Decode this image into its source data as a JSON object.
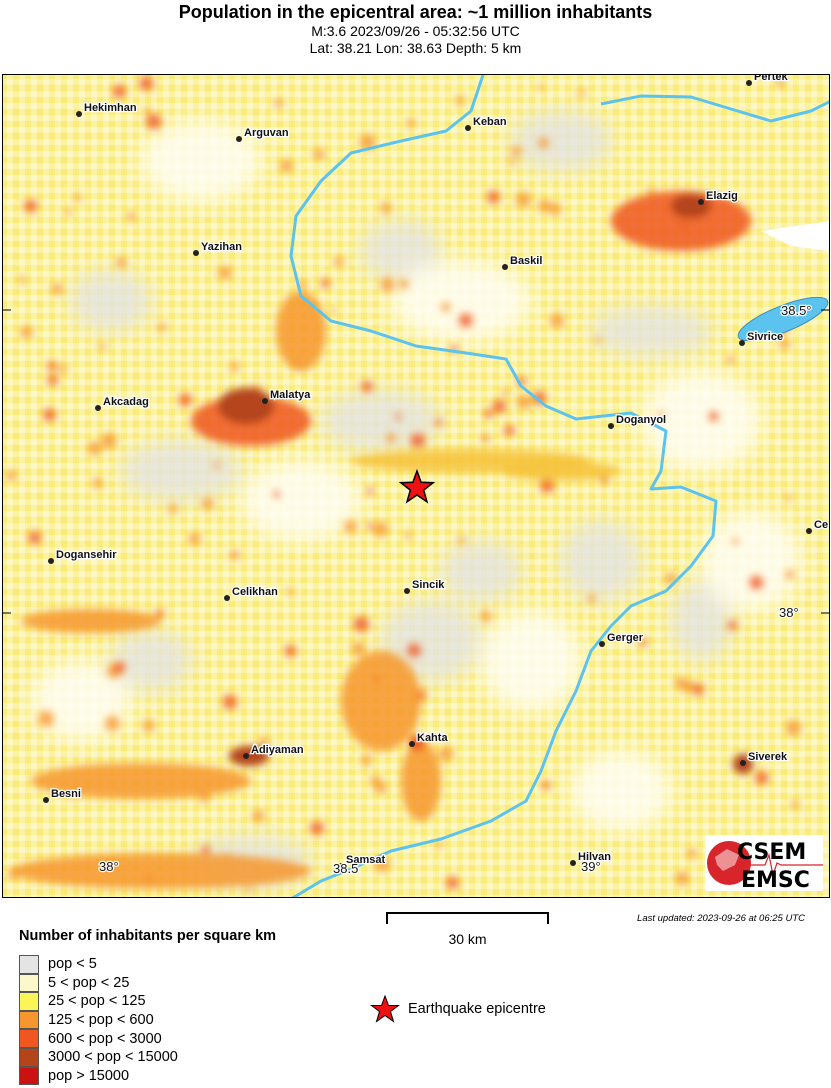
{
  "header": {
    "title": "Population in the epicentral area: ~1 million inhabitants",
    "event_line": "M:3.6 2023/09/26 - 05:32:56 UTC",
    "location_line": "Lat: 38.21 Lon: 38.63 Depth: 5 km"
  },
  "map": {
    "cities": [
      "Pertek",
      "Hekimhan",
      "Arguvan",
      "Keban",
      "Elazig",
      "Yazihan",
      "Baskil",
      "Sivrice",
      "Akcadag",
      "Malatya",
      "Doganyol",
      "Ce",
      "Dogansehir",
      "Celikhan",
      "Sincik",
      "Gerger",
      "Kahta",
      "Adiyaman",
      "Siverek",
      "Besni",
      "Samsat",
      "Hilvan"
    ],
    "grid_labels": [
      "38.5°",
      "38°",
      "38°",
      "38.5",
      "39°"
    ],
    "epicentre": {
      "lat": 38.21,
      "lon": 38.63,
      "icon": "red-star-icon"
    },
    "river_color": "#5bc3ee",
    "logo": {
      "top": "CSEM",
      "bottom": "EMSC"
    }
  },
  "scale": {
    "label": "30 km"
  },
  "last_updated": "Last updated: 2023-09-26 at 06:25 UTC",
  "legend": {
    "title": "Number of inhabitants per square km",
    "items": [
      {
        "label": "pop < 5",
        "color": "#e4e4e4"
      },
      {
        "label": "5 < pop < 25",
        "color": "#fbf8cc"
      },
      {
        "label": "25 < pop < 125",
        "color": "#fbf55a"
      },
      {
        "label": "125 < pop < 600",
        "color": "#f6962e"
      },
      {
        "label": "600 < pop < 3000",
        "color": "#ef5620"
      },
      {
        "label": "3000 < pop < 15000",
        "color": "#b4441a"
      },
      {
        "label": "pop > 15000",
        "color": "#cc1111"
      }
    ],
    "epicentre_label": "Earthquake epicentre"
  }
}
